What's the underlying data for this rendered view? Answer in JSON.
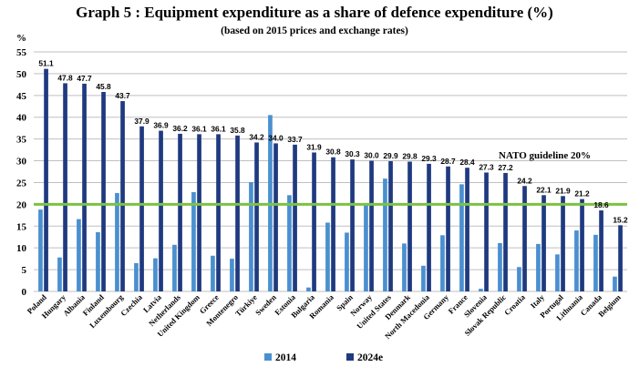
{
  "chart_data": {
    "type": "bar",
    "title": "Graph 5 : Equipment expenditure as a share of defence expenditure (%)",
    "subtitle": "(based on 2015 prices and exchange rates)",
    "ylabel": "%",
    "xlabel": "",
    "ylim": [
      0,
      55
    ],
    "yticks": [
      0,
      5,
      10,
      15,
      20,
      25,
      30,
      35,
      40,
      45,
      50,
      55
    ],
    "grid": true,
    "legend_position": "bottom-center",
    "categories": [
      "Poland",
      "Hungary",
      "Albania",
      "Finland",
      "Luxembourg",
      "Czechia",
      "Latvia",
      "Netherlands",
      "United Kingdom",
      "Greece",
      "Montenegro",
      "Türkiye",
      "Sweden",
      "Estonia",
      "Bulgaria",
      "Romania",
      "Spain",
      "Norway",
      "United States",
      "Denmark",
      "North Macedonia",
      "Germany",
      "France",
      "Slovenia",
      "Slovak Republic",
      "Croatia",
      "Italy",
      "Portugal",
      "Lithuania",
      "Canada",
      "Belgium"
    ],
    "series": [
      {
        "name": "2014",
        "color": "#4a90d0",
        "labeled": false,
        "values": [
          18.8,
          7.8,
          16.6,
          13.6,
          22.6,
          6.5,
          7.6,
          10.7,
          22.8,
          8.2,
          7.5,
          25.1,
          40.5,
          22.1,
          0.9,
          15.8,
          13.5,
          20.3,
          25.9,
          11.0,
          5.9,
          12.9,
          24.6,
          0.6,
          11.1,
          5.6,
          10.9,
          8.5,
          14.0,
          13.0,
          3.4
        ]
      },
      {
        "name": "2024e",
        "color": "#1f3a80",
        "labeled": true,
        "values": [
          51.1,
          47.8,
          47.7,
          45.8,
          43.7,
          37.9,
          36.9,
          36.2,
          36.1,
          36.1,
          35.8,
          34.2,
          34.0,
          33.7,
          31.9,
          30.8,
          30.3,
          30.0,
          29.9,
          29.8,
          29.3,
          28.7,
          28.4,
          27.3,
          27.2,
          24.2,
          22.1,
          21.9,
          21.2,
          18.6,
          15.2
        ]
      }
    ],
    "reference_line": {
      "value": 20,
      "label": "NATO guideline 20%",
      "color": "#7dc242"
    }
  }
}
